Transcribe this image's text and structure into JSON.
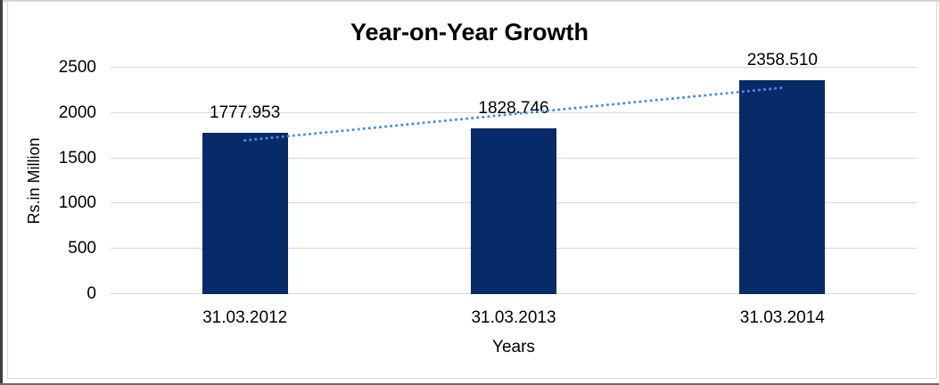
{
  "chart_data": {
    "type": "bar",
    "title": "Year-on-Year Growth",
    "xlabel": "Years",
    "ylabel": "Rs.in Million",
    "categories": [
      "31.03.2012",
      "31.03.2013",
      "31.03.2014"
    ],
    "values": [
      1777.953,
      1828.746,
      2358.51
    ],
    "data_labels": [
      "1777.953",
      "1828.746",
      "2358.510"
    ],
    "yticks": [
      0,
      500,
      1000,
      1500,
      2000,
      2500
    ],
    "ylim": [
      0,
      2500
    ],
    "grid": true,
    "legend": "none",
    "bar_color": "#072a68",
    "trendline": {
      "type": "linear",
      "style": "dotted",
      "color": "#4a90d8"
    },
    "gridline_color": "#d9d9d9",
    "text_color": "#000000",
    "background_color": "#ffffff",
    "border_color": "#d9d9d9"
  }
}
